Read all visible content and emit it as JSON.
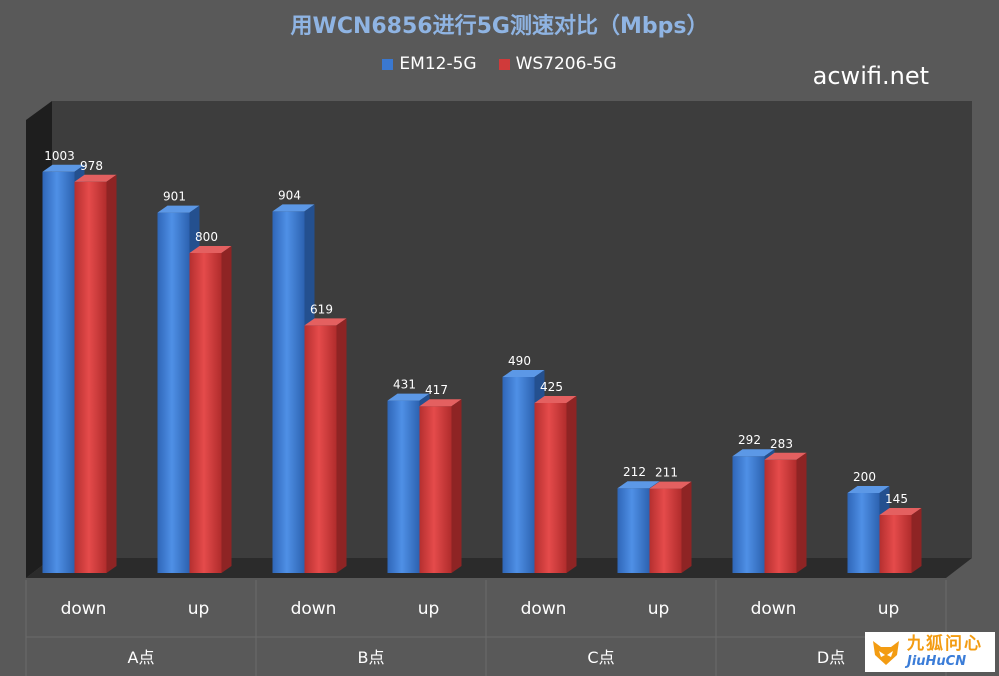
{
  "chart_data": {
    "type": "bar",
    "title": "用WCN6856进行5G测速对比（Mbps）",
    "groups": [
      "A点",
      "B点",
      "C点",
      "D点"
    ],
    "categories": [
      "down",
      "up",
      "down",
      "up",
      "down",
      "up",
      "down",
      "up"
    ],
    "series": [
      {
        "name": "EM12-5G",
        "color": "#3a78d0",
        "values": [
          1003,
          901,
          904,
          431,
          490,
          212,
          292,
          200
        ]
      },
      {
        "name": "WS7206-5G",
        "color": "#d03a3a",
        "values": [
          978,
          800,
          619,
          417,
          425,
          211,
          283,
          145
        ]
      }
    ],
    "ylim": [
      0,
      1100
    ],
    "grid": false,
    "legend": "top-center",
    "data_labels": true
  },
  "watermark": "acwifi.net",
  "logo": {
    "cn": "九狐问心",
    "en": "JiuHuCN"
  }
}
